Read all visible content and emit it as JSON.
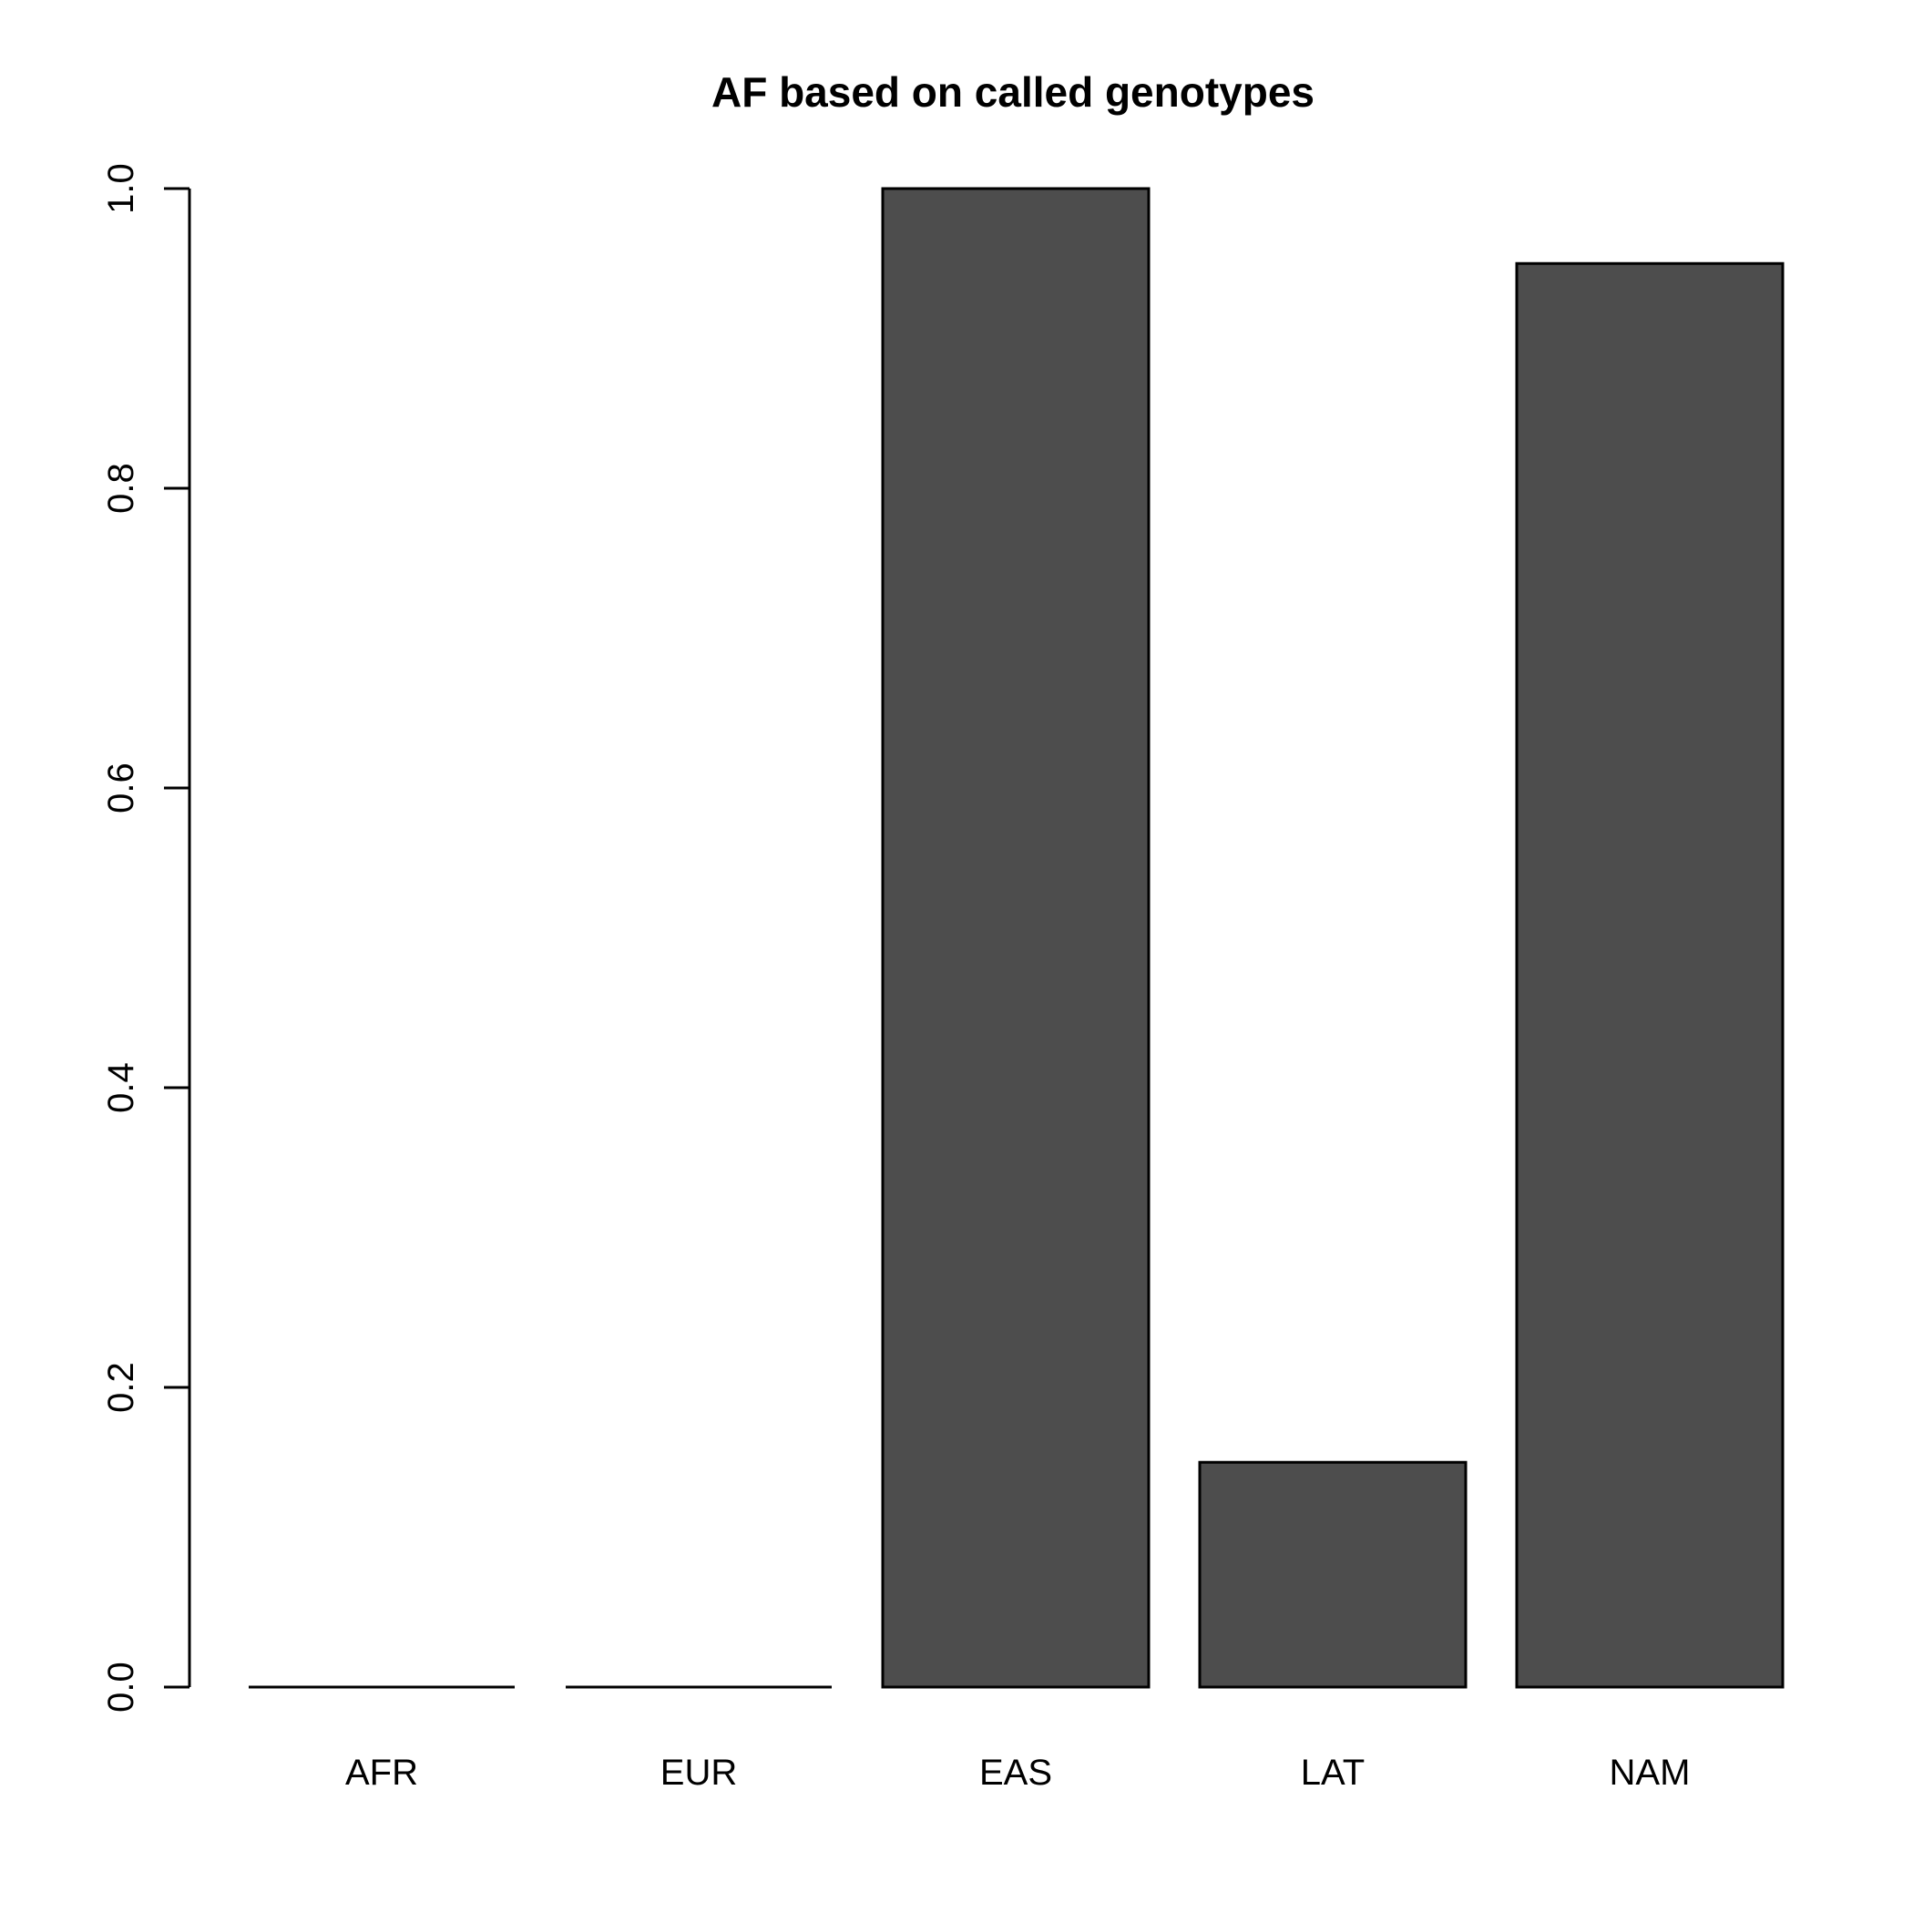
{
  "chart_data": {
    "type": "bar",
    "title": "AF based on called genotypes",
    "xlabel": "",
    "ylabel": "",
    "categories": [
      "AFR",
      "EUR",
      "EAS",
      "LAT",
      "NAM"
    ],
    "values": [
      0.0,
      0.0,
      1.0,
      0.15,
      0.95
    ],
    "ylim": [
      0,
      1
    ],
    "yticks": [
      0.0,
      0.2,
      0.4,
      0.6,
      0.8,
      1.0
    ],
    "ytick_labels": [
      "0.0",
      "0.2",
      "0.4",
      "0.6",
      "0.8",
      "1.0"
    ],
    "grid": false,
    "legend": "none",
    "bar_color": "#4d4d4d",
    "edge_color": "#000000"
  }
}
